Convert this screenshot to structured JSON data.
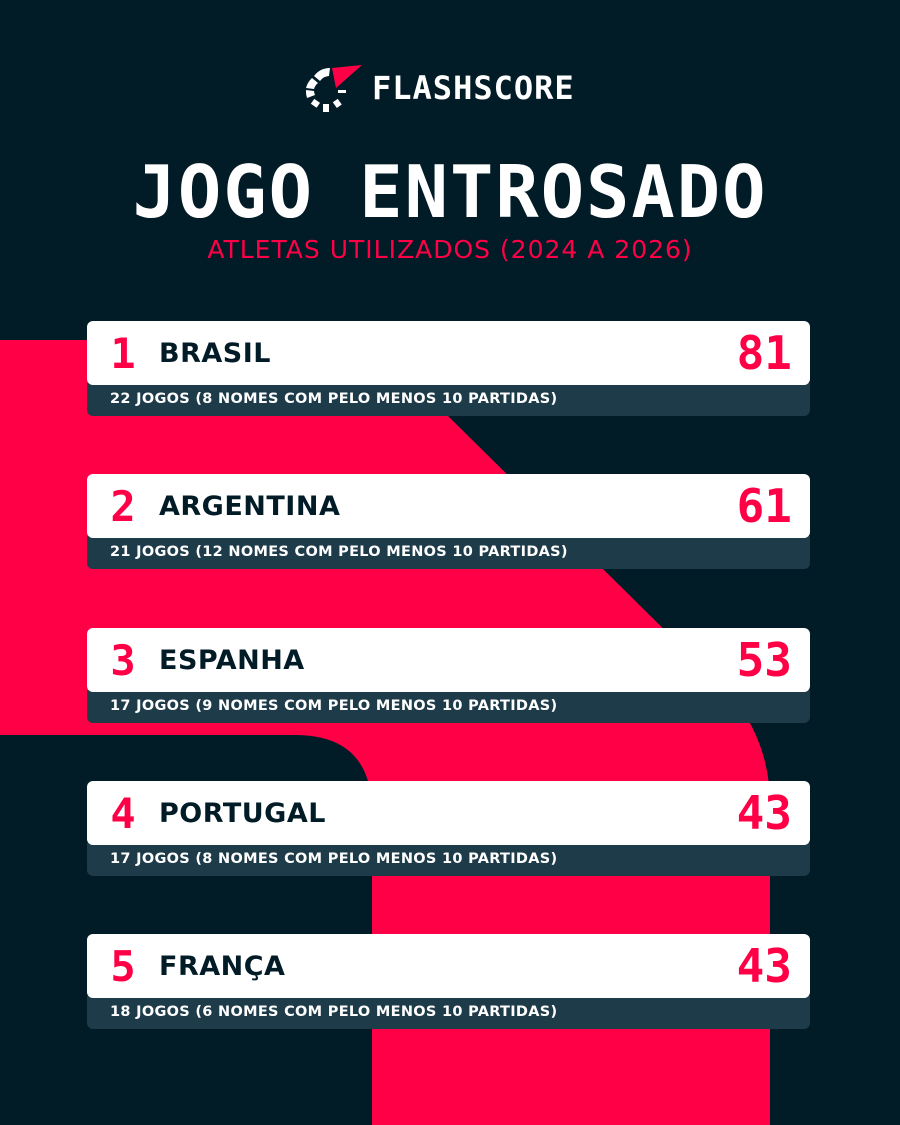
{
  "brand": {
    "name": "FLASHSCORE",
    "accent": "#ff0046",
    "background": "#011b27",
    "card_footer": "#1e3b4a"
  },
  "header": {
    "title": "JOGO ENTROSADO",
    "subtitle": "ATLETAS UTILIZADOS (2024 A 2026)"
  },
  "ranking": [
    {
      "rank": "1",
      "team": "BRASIL",
      "value": "81",
      "detail": "22 JOGOS (8 NOMES COM PELO MENOS 10 PARTIDAS)"
    },
    {
      "rank": "2",
      "team": "ARGENTINA",
      "value": "61",
      "detail": "21 JOGOS (12 NOMES COM PELO MENOS 10 PARTIDAS)"
    },
    {
      "rank": "3",
      "team": "ESPANHA",
      "value": "53",
      "detail": "17 JOGOS (9 NOMES COM PELO MENOS 10 PARTIDAS)"
    },
    {
      "rank": "4",
      "team": "PORTUGAL",
      "value": "43",
      "detail": "17 JOGOS (8 NOMES COM PELO MENOS 10 PARTIDAS)"
    },
    {
      "rank": "5",
      "team": "FRANÇA",
      "value": "43",
      "detail": "18 JOGOS (6 NOMES COM PELO MENOS 10 PARTIDAS)"
    }
  ]
}
